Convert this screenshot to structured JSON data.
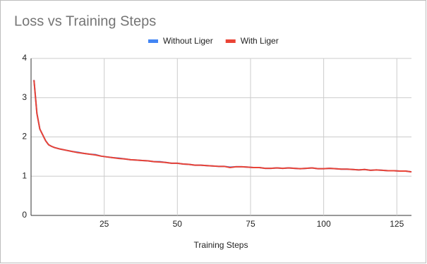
{
  "chart_data": {
    "type": "line",
    "title": "Loss vs Training Steps",
    "x_label": "Training Steps",
    "x": [
      1,
      2,
      3,
      4,
      5,
      6,
      7,
      8,
      9,
      10,
      12,
      14,
      16,
      18,
      20,
      22,
      24,
      26,
      28,
      30,
      32,
      34,
      36,
      38,
      40,
      42,
      44,
      46,
      48,
      50,
      52,
      54,
      56,
      58,
      60,
      62,
      64,
      66,
      68,
      70,
      72,
      74,
      76,
      78,
      80,
      82,
      84,
      86,
      88,
      90,
      92,
      94,
      96,
      98,
      100,
      102,
      104,
      106,
      108,
      110,
      112,
      114,
      116,
      118,
      120,
      122,
      124,
      126,
      128,
      130
    ],
    "series": [
      {
        "name": "Without Liger",
        "color": "#4285f4",
        "values": [
          3.45,
          2.6,
          2.2,
          2.05,
          1.9,
          1.8,
          1.76,
          1.73,
          1.71,
          1.69,
          1.66,
          1.63,
          1.61,
          1.58,
          1.56,
          1.55,
          1.51,
          1.49,
          1.47,
          1.46,
          1.44,
          1.42,
          1.41,
          1.4,
          1.39,
          1.37,
          1.37,
          1.35,
          1.33,
          1.33,
          1.31,
          1.3,
          1.28,
          1.28,
          1.27,
          1.26,
          1.25,
          1.25,
          1.23,
          1.24,
          1.24,
          1.23,
          1.22,
          1.22,
          1.2,
          1.2,
          1.21,
          1.2,
          1.21,
          1.2,
          1.19,
          1.2,
          1.21,
          1.19,
          1.19,
          1.2,
          1.19,
          1.18,
          1.18,
          1.17,
          1.16,
          1.17,
          1.15,
          1.16,
          1.15,
          1.14,
          1.14,
          1.13,
          1.13,
          1.11
        ]
      },
      {
        "name": "With Liger",
        "color": "#ea4335",
        "values": [
          3.45,
          2.6,
          2.2,
          2.05,
          1.9,
          1.8,
          1.76,
          1.73,
          1.71,
          1.69,
          1.66,
          1.63,
          1.6,
          1.58,
          1.56,
          1.54,
          1.51,
          1.49,
          1.47,
          1.45,
          1.44,
          1.42,
          1.41,
          1.4,
          1.39,
          1.37,
          1.36,
          1.35,
          1.33,
          1.33,
          1.31,
          1.3,
          1.28,
          1.28,
          1.27,
          1.26,
          1.25,
          1.25,
          1.22,
          1.24,
          1.24,
          1.23,
          1.22,
          1.22,
          1.2,
          1.2,
          1.21,
          1.2,
          1.21,
          1.2,
          1.19,
          1.2,
          1.21,
          1.19,
          1.19,
          1.2,
          1.19,
          1.18,
          1.18,
          1.17,
          1.16,
          1.17,
          1.15,
          1.16,
          1.15,
          1.14,
          1.14,
          1.13,
          1.13,
          1.11
        ]
      }
    ],
    "xlim": [
      0,
      130
    ],
    "xticks": [
      25,
      50,
      75,
      100,
      125
    ],
    "ylim": [
      0,
      4
    ],
    "yticks": [
      0,
      1,
      2,
      3,
      4
    ],
    "grid": true,
    "legend": "top"
  }
}
